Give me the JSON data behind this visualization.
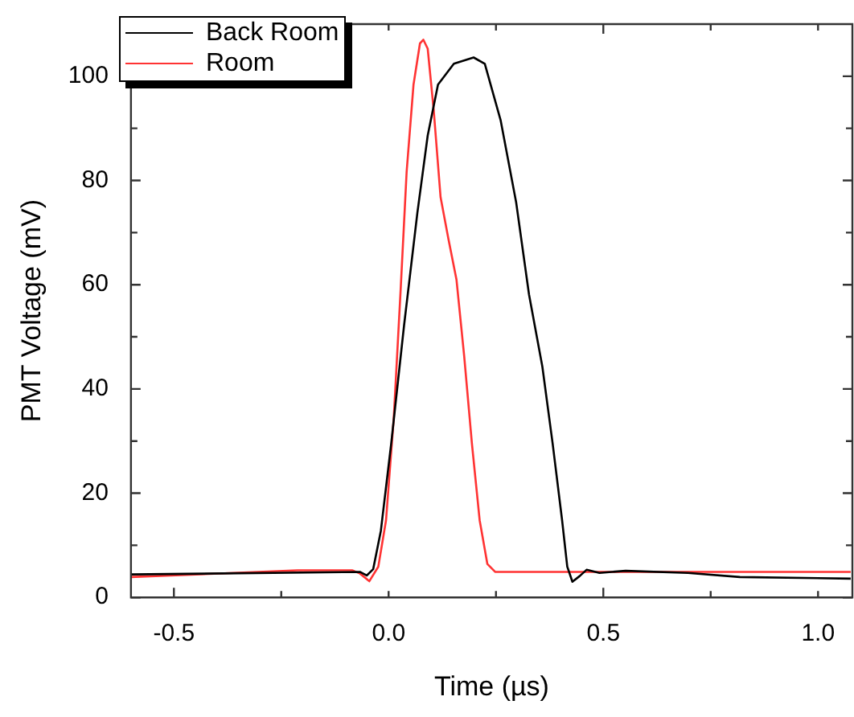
{
  "chart_data": {
    "type": "line",
    "xlabel": "Time (µs)",
    "ylabel": "PMT Voltage (mV)",
    "xlim": [
      -0.6,
      1.08
    ],
    "ylim": [
      0,
      110
    ],
    "xticks": [
      -0.5,
      {
        "value": -0.25,
        "label": null
      },
      {
        "value": 0,
        "label": "0.0"
      },
      {
        "value": 0.25,
        "label": null
      },
      0.5,
      {
        "value": 0.75,
        "label": null
      },
      {
        "value": 1,
        "label": "1.0"
      }
    ],
    "yticks": [
      0,
      {
        "value": 10,
        "label": null
      },
      20,
      {
        "value": 30,
        "label": null
      },
      40,
      {
        "value": 50,
        "label": null
      },
      60,
      {
        "value": 70,
        "label": null
      },
      80,
      {
        "value": 90,
        "label": null
      },
      100
    ],
    "grid": false,
    "legend": "top left",
    "marker": "none",
    "line_style": "solid",
    "series": [
      {
        "name": "Back Room",
        "color": "#000000",
        "x": [
          -0.6,
          -0.067,
          -0.051,
          -0.036,
          -0.018,
          0.006,
          0.036,
          0.067,
          0.091,
          0.115,
          0.152,
          0.198,
          0.224,
          0.261,
          0.297,
          0.327,
          0.358,
          0.382,
          0.404,
          0.416,
          0.428,
          0.445,
          0.461,
          0.491,
          0.552,
          0.697,
          0.818,
          1.076
        ],
        "values": [
          4.4,
          4.9,
          4.2,
          5.4,
          12.8,
          29.5,
          52.2,
          73.8,
          88.6,
          98.4,
          102.4,
          103.6,
          102.4,
          91.5,
          75.8,
          58.1,
          44.3,
          29.5,
          14.8,
          5.9,
          3.0,
          4.1,
          5.3,
          4.7,
          5.1,
          4.7,
          3.9,
          3.6
        ]
      },
      {
        "name": "Room",
        "color": "#ff3333",
        "x": [
          -0.6,
          -0.212,
          -0.085,
          -0.067,
          -0.045,
          -0.024,
          -0.006,
          0.012,
          0.028,
          0.042,
          0.058,
          0.073,
          0.081,
          0.091,
          0.105,
          0.121,
          0.139,
          0.158,
          0.176,
          0.194,
          0.212,
          0.23,
          0.248,
          0.333,
          1.076
        ],
        "values": [
          3.9,
          5.2,
          5.2,
          4.6,
          3.1,
          5.9,
          14.8,
          34.4,
          59,
          81.7,
          98.4,
          106.3,
          107,
          105.3,
          93.5,
          76.8,
          68.9,
          61,
          46.3,
          29.5,
          14.8,
          6.4,
          4.9,
          4.9,
          4.9
        ]
      }
    ]
  }
}
